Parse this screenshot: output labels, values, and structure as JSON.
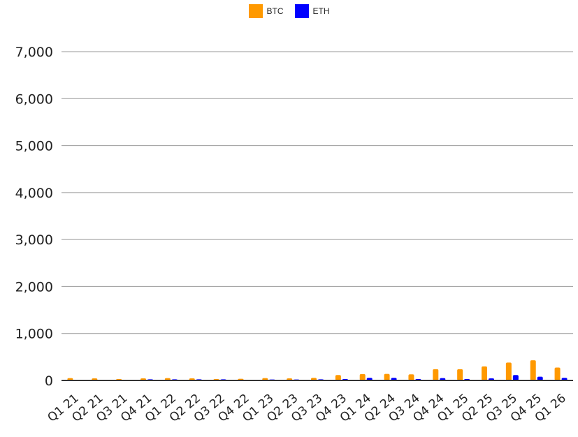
{
  "chart_data": {
    "type": "bar",
    "categories": [
      "Q1 21",
      "Q2 21",
      "Q3 21",
      "Q4 21",
      "Q1 22",
      "Q2 22",
      "Q3 22",
      "Q4 22",
      "Q1 23",
      "Q2 23",
      "Q3 23",
      "Q4 23",
      "Q1 24",
      "Q2 24",
      "Q3 24",
      "Q4 24",
      "Q1 25",
      "Q2 25",
      "Q3 25",
      "Q4 25",
      "Q1 26"
    ],
    "series": [
      {
        "name": "BTC",
        "color": "#ff9900",
        "values": [
          50,
          45,
          30,
          45,
          50,
          45,
          30,
          35,
          50,
          45,
          55,
          115,
          135,
          140,
          130,
          240,
          240,
          300,
          380,
          430,
          275
        ]
      },
      {
        "name": "ETH",
        "color": "#0000ff",
        "values": [
          5,
          5,
          5,
          25,
          25,
          25,
          25,
          5,
          20,
          20,
          25,
          30,
          55,
          55,
          30,
          50,
          30,
          45,
          115,
          80,
          55
        ]
      }
    ],
    "y_ticks": [
      "0",
      "1,000",
      "2,000",
      "3,000",
      "4,000",
      "5,000",
      "6,000",
      "7,000"
    ],
    "ylim": [
      0,
      7000
    ],
    "grid": true,
    "legend_position": "top-center"
  }
}
